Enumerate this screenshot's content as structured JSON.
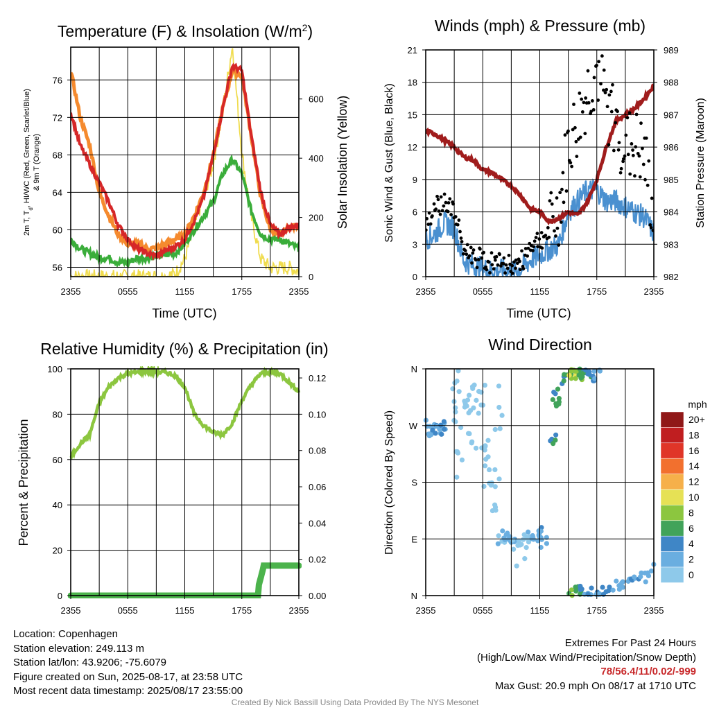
{
  "panels": {
    "temperature": {
      "title": "Temperature (F) & Insolation (W/m²)",
      "ylabel_left_line1": "2m T, Td, HI/WC (Red, Green, Scarlet/Blue)",
      "ylabel_left_line2": "& 9m T (Orange)",
      "ylabel_right": "Solar Insolation (Yellow)",
      "xlabel": "Time (UTC)"
    },
    "winds": {
      "title": "Winds (mph) & Pressure (mb)",
      "ylabel_left": "Sonic Wind & Gust (Blue, Black)",
      "ylabel_right": "Station Pressure (Maroon)",
      "xlabel": "Time (UTC)"
    },
    "humidity": {
      "title": "Relative Humidity (%) & Precipitation (in)",
      "ylabel_left": "Percent & Precipitation"
    },
    "direction": {
      "title": "Wind Direction",
      "ylabel_left": "Direction (Colored By Speed)",
      "legend_title": "mph",
      "legend_labels": [
        "20+",
        "18",
        "16",
        "14",
        "12",
        "10",
        "8",
        "6",
        "4",
        "2",
        "0"
      ]
    }
  },
  "info": {
    "location": "Location: Copenhagen",
    "elevation": "Station elevation: 249.113 m",
    "latlon": "Station lat/lon: 43.9206; -75.6079",
    "created": "Figure created on Sun, 2025-08-17, at 23:58 UTC",
    "recent": "Most recent data timestamp: 2025/08/17 23:55:00"
  },
  "extremes": {
    "title": "Extremes For Past 24 Hours",
    "subtitle": "(High/Low/Max Wind/Precipitation/Snow Depth)",
    "values": "78/56.4/11/0.02/-999",
    "gust": "Max Gust: 20.9 mph On 08/17 at 1710 UTC"
  },
  "credit": "Created By Nick Bassill Using Data Provided By The NYS Mesonet",
  "colors": {
    "temperature": "#d62728",
    "dewpoint": "#3aad3a",
    "temp_9m": "#f58a2e",
    "insolation": "#f0dc4e",
    "wind": "#4a90d0",
    "gust": "#000000",
    "pressure": "#a01c1c",
    "humidity": "#8cc63f",
    "precipitation": "#4cb34c",
    "speed_scale": [
      "#bfe6f7",
      "#8ec9ea",
      "#6aaee0",
      "#3f86c6",
      "#41a35a",
      "#8cc63f",
      "#e6e155",
      "#f6b04a",
      "#f2702e",
      "#e03528",
      "#c01e20",
      "#901818"
    ]
  },
  "chart_data": [
    {
      "type": "line",
      "title": "Temperature (F) & Insolation (W/m²)",
      "xlabel": "Time (UTC)",
      "ylabel": "2m T, Td, HI/WC (Red, Green, Scarlet/Blue) & 9m T (Orange)",
      "y2label": "Solar Insolation (Yellow)",
      "x_ticks": [
        "2355",
        "0555",
        "1155",
        "1755",
        "2355"
      ],
      "x_hours": [
        0,
        1,
        2,
        3,
        4,
        5,
        6,
        7,
        8,
        9,
        10,
        11,
        12,
        13,
        14,
        15,
        16,
        17,
        18,
        19,
        20,
        21,
        22,
        23,
        24
      ],
      "ylim": [
        55,
        79.5
      ],
      "y_ticks": [
        56,
        60,
        64,
        68,
        72,
        76
      ],
      "y2lim": [
        0,
        775
      ],
      "y2_ticks": [
        0,
        200,
        400,
        600
      ],
      "grid": true,
      "series": [
        {
          "name": "2m T",
          "axis": "left",
          "values": [
            72.5,
            69,
            67,
            65,
            63,
            60.5,
            59,
            58,
            57.5,
            57.2,
            57.8,
            58.2,
            59,
            61,
            63.5,
            68,
            73,
            77.5,
            77,
            70,
            64,
            60.5,
            59.5,
            60.3,
            60.5
          ]
        },
        {
          "name": "Td",
          "axis": "left",
          "values": [
            59,
            58,
            57.5,
            57,
            57,
            56.5,
            56.5,
            57,
            57,
            57.2,
            57.3,
            57.5,
            58.5,
            60,
            61.5,
            63,
            66,
            67.5,
            66,
            62,
            59.5,
            59,
            59,
            58.5,
            58
          ]
        },
        {
          "name": "9m T",
          "axis": "left",
          "values": [
            77,
            72,
            69,
            64,
            61.5,
            59.5,
            58.5,
            58.5,
            58,
            58,
            58.5,
            59,
            59.5,
            61.5,
            64,
            68,
            73,
            77,
            76.5,
            70,
            63.5,
            60,
            59.5,
            60.3,
            60.5
          ]
        },
        {
          "name": "Solar Insolation",
          "axis": "right",
          "values": [
            0,
            0,
            0,
            0,
            0,
            0,
            0,
            0,
            0,
            0,
            0,
            10,
            60,
            170,
            270,
            380,
            560,
            780,
            420,
            200,
            60,
            30,
            30,
            30,
            20
          ]
        }
      ]
    },
    {
      "type": "line",
      "title": "Winds (mph) & Pressure (mb)",
      "xlabel": "Time (UTC)",
      "ylabel": "Sonic Wind & Gust (Blue, Black)",
      "y2label": "Station Pressure (Maroon)",
      "x_ticks": [
        "2355",
        "0555",
        "1155",
        "1755",
        "2355"
      ],
      "x_hours": [
        0,
        1,
        2,
        3,
        4,
        5,
        6,
        7,
        8,
        9,
        10,
        11,
        12,
        13,
        14,
        15,
        16,
        17,
        18,
        19,
        20,
        21,
        22,
        23,
        24
      ],
      "ylim": [
        0,
        21
      ],
      "y_ticks": [
        0,
        3,
        6,
        9,
        12,
        15,
        18,
        21
      ],
      "y2lim": [
        982,
        989
      ],
      "y2_ticks": [
        982,
        983,
        984,
        985,
        986,
        987,
        988,
        989
      ],
      "grid": true,
      "series": [
        {
          "name": "Sonic Wind",
          "axis": "left",
          "values": [
            3.5,
            4,
            5,
            4.5,
            1.5,
            1,
            0.8,
            0.5,
            0.6,
            0.5,
            0.7,
            1.5,
            2,
            2.5,
            3,
            6,
            7,
            8,
            8,
            7,
            7,
            6.5,
            6,
            5.5,
            4
          ]
        },
        {
          "name": "Gust",
          "axis": "left",
          "values": [
            5,
            6.5,
            7,
            6,
            2.5,
            2,
            1.5,
            1.2,
            1.2,
            1,
            1.2,
            3,
            3.5,
            4,
            6,
            12,
            14,
            17,
            19,
            16,
            14,
            12,
            12,
            11,
            5
          ]
        },
        {
          "name": "Station Pressure",
          "axis": "right",
          "values": [
            986.5,
            986.4,
            986.2,
            986,
            985.7,
            985.6,
            985.3,
            985.2,
            985,
            984.8,
            984.5,
            984.1,
            984,
            983.7,
            983.8,
            984,
            983.9,
            984.3,
            985,
            986,
            986.8,
            987,
            987.2,
            987.5,
            987.9
          ]
        }
      ]
    },
    {
      "type": "line",
      "title": "Relative Humidity (%) & Precipitation (in)",
      "ylabel": "Percent & Precipitation",
      "x_ticks": [
        "2355",
        "0555",
        "1155",
        "1755",
        "2355"
      ],
      "x_hours": [
        0,
        1,
        2,
        3,
        4,
        5,
        6,
        7,
        8,
        9,
        10,
        11,
        12,
        13,
        14,
        15,
        16,
        17,
        18,
        19,
        20,
        21,
        22,
        23,
        24
      ],
      "ylim": [
        0,
        100
      ],
      "y_ticks": [
        0,
        20,
        40,
        60,
        80,
        100
      ],
      "y2lim": [
        0,
        0.125
      ],
      "y2_ticks": [
        0.0,
        0.02,
        0.04,
        0.06,
        0.08,
        0.1,
        0.12
      ],
      "grid": true,
      "series": [
        {
          "name": "Relative Humidity",
          "axis": "left",
          "values": [
            61,
            67,
            71,
            85,
            92,
            96,
            98,
            98.5,
            99,
            98.5,
            98.5,
            97,
            92,
            80,
            75,
            72,
            71,
            76,
            86,
            93,
            98,
            98.5,
            98,
            94,
            90
          ]
        },
        {
          "name": "Precipitation",
          "axis": "right",
          "values": [
            0,
            0,
            0,
            0,
            0,
            0,
            0,
            0,
            0,
            0,
            0,
            0,
            0,
            0,
            0,
            0,
            0,
            0,
            0,
            0,
            0.015,
            0.017,
            0.017,
            0.017,
            0.017
          ]
        }
      ]
    },
    {
      "type": "scatter",
      "title": "Wind Direction",
      "ylabel": "Direction (Colored By Speed)",
      "x_ticks": [
        "2355",
        "0555",
        "1155",
        "1755",
        "2355"
      ],
      "y_ticks": [
        "N",
        "E",
        "S",
        "W",
        "N"
      ],
      "ylim": [
        0,
        360
      ],
      "legend": {
        "title": "mph",
        "placement": "right",
        "labels": [
          "20+",
          "18",
          "16",
          "14",
          "12",
          "10",
          "8",
          "6",
          "4",
          "2",
          "0"
        ]
      },
      "grid": true,
      "series": [
        {
          "name": "Direction",
          "points": [
            [
              0.2,
              270,
              3
            ],
            [
              0.6,
              262,
              3
            ],
            [
              1.0,
              265,
              4
            ],
            [
              1.5,
              262,
              4
            ],
            [
              2.0,
              268,
              4
            ],
            [
              3.0,
              300,
              1
            ],
            [
              3.3,
              325,
              1
            ],
            [
              3.6,
              200,
              1
            ],
            [
              4.0,
              280,
              1
            ],
            [
              4.5,
              290,
              1
            ],
            [
              5.0,
              270,
              1
            ],
            [
              5.3,
              310,
              1
            ],
            [
              5.8,
              320,
              1
            ],
            [
              6.2,
              240,
              1
            ],
            [
              6.5,
              200,
              1
            ],
            [
              7.0,
              180,
              1
            ],
            [
              7.3,
              150,
              1
            ],
            [
              7.7,
              300,
              1
            ],
            [
              8.0,
              90,
              2
            ],
            [
              8.5,
              95,
              3
            ],
            [
              9.0,
              88,
              3
            ],
            [
              9.5,
              80,
              2
            ],
            [
              10.0,
              70,
              1
            ],
            [
              10.5,
              92,
              2
            ],
            [
              11.0,
              85,
              2
            ],
            [
              11.5,
              90,
              3
            ],
            [
              12.0,
              100,
              4
            ],
            [
              12.5,
              85,
              3
            ],
            [
              13.5,
              250,
              6
            ],
            [
              13.8,
              320,
              6
            ],
            [
              14.0,
              300,
              7
            ],
            [
              14.5,
              345,
              6
            ],
            [
              15.0,
              352,
              8
            ],
            [
              15.5,
              355,
              10
            ],
            [
              16.0,
              350,
              9
            ],
            [
              16.5,
              352,
              7
            ],
            [
              17.0,
              355,
              6
            ],
            [
              17.5,
              348,
              5
            ],
            [
              18.0,
              352,
              4
            ],
            [
              15.5,
              5,
              8
            ],
            [
              16.0,
              8,
              7
            ],
            [
              16.5,
              10,
              5
            ],
            [
              17.0,
              4,
              4
            ],
            [
              18.0,
              6,
              4
            ],
            [
              19.0,
              10,
              5
            ],
            [
              20.0,
              15,
              3
            ],
            [
              21.0,
              18,
              3
            ],
            [
              22.0,
              24,
              4
            ],
            [
              23.0,
              30,
              3
            ],
            [
              23.8,
              45,
              3
            ]
          ]
        }
      ]
    }
  ]
}
